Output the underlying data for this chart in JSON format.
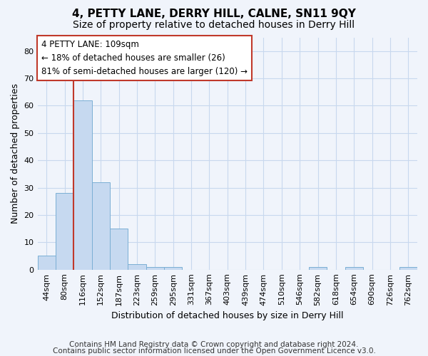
{
  "title": "4, PETTY LANE, DERRY HILL, CALNE, SN11 9QY",
  "subtitle": "Size of property relative to detached houses in Derry Hill",
  "xlabel": "Distribution of detached houses by size in Derry Hill",
  "ylabel": "Number of detached properties",
  "bin_labels": [
    "44sqm",
    "80sqm",
    "116sqm",
    "152sqm",
    "187sqm",
    "223sqm",
    "259sqm",
    "295sqm",
    "331sqm",
    "367sqm",
    "403sqm",
    "439sqm",
    "474sqm",
    "510sqm",
    "546sqm",
    "582sqm",
    "618sqm",
    "654sqm",
    "690sqm",
    "726sqm",
    "762sqm"
  ],
  "bar_heights": [
    5,
    28,
    62,
    32,
    15,
    2,
    1,
    1,
    0,
    0,
    0,
    0,
    0,
    0,
    0,
    1,
    0,
    1,
    0,
    0,
    1
  ],
  "bar_color": "#c6d9f0",
  "bar_edge_color": "#7bafd4",
  "subject_line_color": "#c0392b",
  "annotation_box_text": "4 PETTY LANE: 109sqm\n← 18% of detached houses are smaller (26)\n81% of semi-detached houses are larger (120) →",
  "ylim": [
    0,
    85
  ],
  "yticks": [
    0,
    10,
    20,
    30,
    40,
    50,
    60,
    70,
    80
  ],
  "bg_color": "#f0f4fb",
  "grid_color": "#c8d8ee",
  "footer_line1": "Contains HM Land Registry data © Crown copyright and database right 2024.",
  "footer_line2": "Contains public sector information licensed under the Open Government Licence v3.0.",
  "title_fontsize": 11,
  "subtitle_fontsize": 10,
  "axis_label_fontsize": 9,
  "tick_fontsize": 8,
  "annotation_fontsize": 8.5,
  "footer_fontsize": 7.5
}
